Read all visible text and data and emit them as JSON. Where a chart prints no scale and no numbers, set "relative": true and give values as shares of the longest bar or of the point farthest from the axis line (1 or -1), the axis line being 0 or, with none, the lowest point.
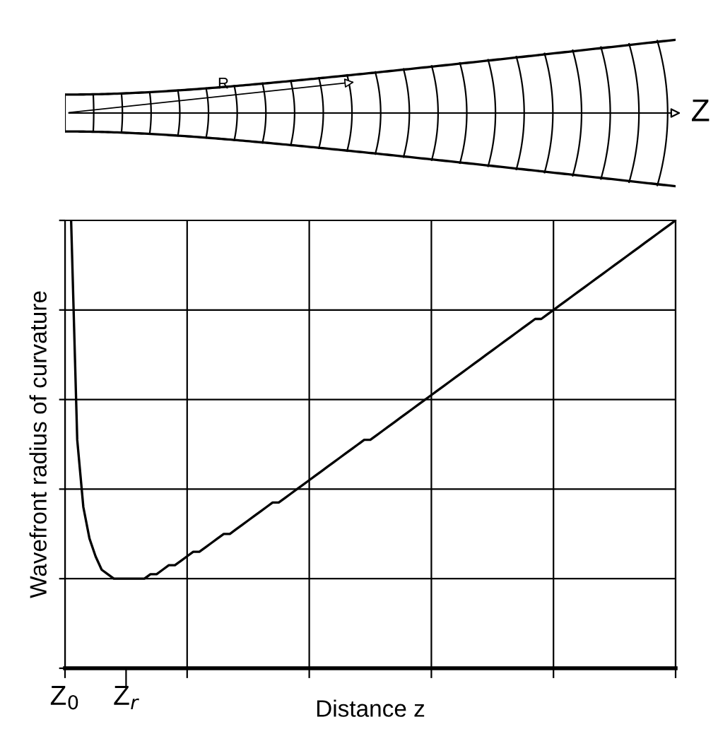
{
  "chart_data": {
    "type": "line",
    "relative": true,
    "xlabel": "Distance z",
    "ylabel": "Wavefront radius of curvature",
    "annotations": [
      "R",
      "Z"
    ],
    "categories": [
      "Z$_{0}$",
      null,
      null,
      null,
      null,
      null,
      null,
      null,
      null,
      null,
      "Z$_{r}$",
      null,
      null,
      null,
      null,
      null,
      null,
      null,
      null,
      null,
      null,
      null,
      null,
      null,
      null,
      null,
      null,
      null,
      null,
      null,
      null,
      null,
      null,
      null,
      null,
      null,
      null,
      null,
      null,
      null,
      null,
      null,
      null,
      null,
      null,
      null,
      null,
      null,
      null,
      null,
      null,
      null,
      null,
      null,
      null,
      null,
      null,
      null,
      null,
      null,
      null,
      null,
      null,
      null,
      null,
      null,
      null,
      null,
      null,
      null,
      null,
      null,
      null,
      null,
      null,
      null,
      null,
      null,
      null,
      null,
      null,
      null,
      null,
      null,
      null,
      null,
      null,
      null,
      null,
      null,
      null,
      null,
      null,
      null,
      null,
      null,
      null,
      null,
      null,
      null,
      null
    ],
    "series": [
      {
        "color": "#000000",
        "values": [
          null,
          1.0,
          0.51,
          0.36,
          0.29,
          0.25,
          0.22,
          0.21,
          0.2,
          0.2,
          0.2,
          0.2,
          0.2,
          0.2,
          0.21,
          0.21,
          0.22,
          0.23,
          0.23,
          0.24,
          0.25,
          0.26,
          0.26,
          0.27,
          0.28,
          0.29,
          0.3,
          0.3,
          0.31,
          0.32,
          0.33,
          0.34,
          0.35,
          0.36,
          0.37,
          0.37,
          0.38,
          0.39,
          0.4,
          0.41,
          0.42,
          0.43,
          0.44,
          0.45,
          0.46,
          0.47,
          0.48,
          0.49,
          0.5,
          0.51,
          0.51,
          0.52,
          0.53,
          0.54,
          0.55,
          0.56,
          0.57,
          0.58,
          0.59,
          0.6,
          0.61,
          0.62,
          0.63,
          0.64,
          0.65,
          0.66,
          0.67,
          0.68,
          0.69,
          0.7,
          0.71,
          0.72,
          0.73,
          0.74,
          0.75,
          0.76,
          0.77,
          0.78,
          0.78,
          0.79,
          0.8,
          0.81,
          0.82,
          0.83,
          0.84,
          0.85,
          0.86,
          0.87,
          0.88,
          0.89,
          0.9,
          0.91,
          0.92,
          0.93,
          0.94,
          0.95,
          0.96,
          0.97,
          0.98,
          0.99,
          1.0
        ]
      }
    ],
    "grid": true,
    "tick_labels": "x",
    "marker": "none",
    "line_style": "solid"
  }
}
